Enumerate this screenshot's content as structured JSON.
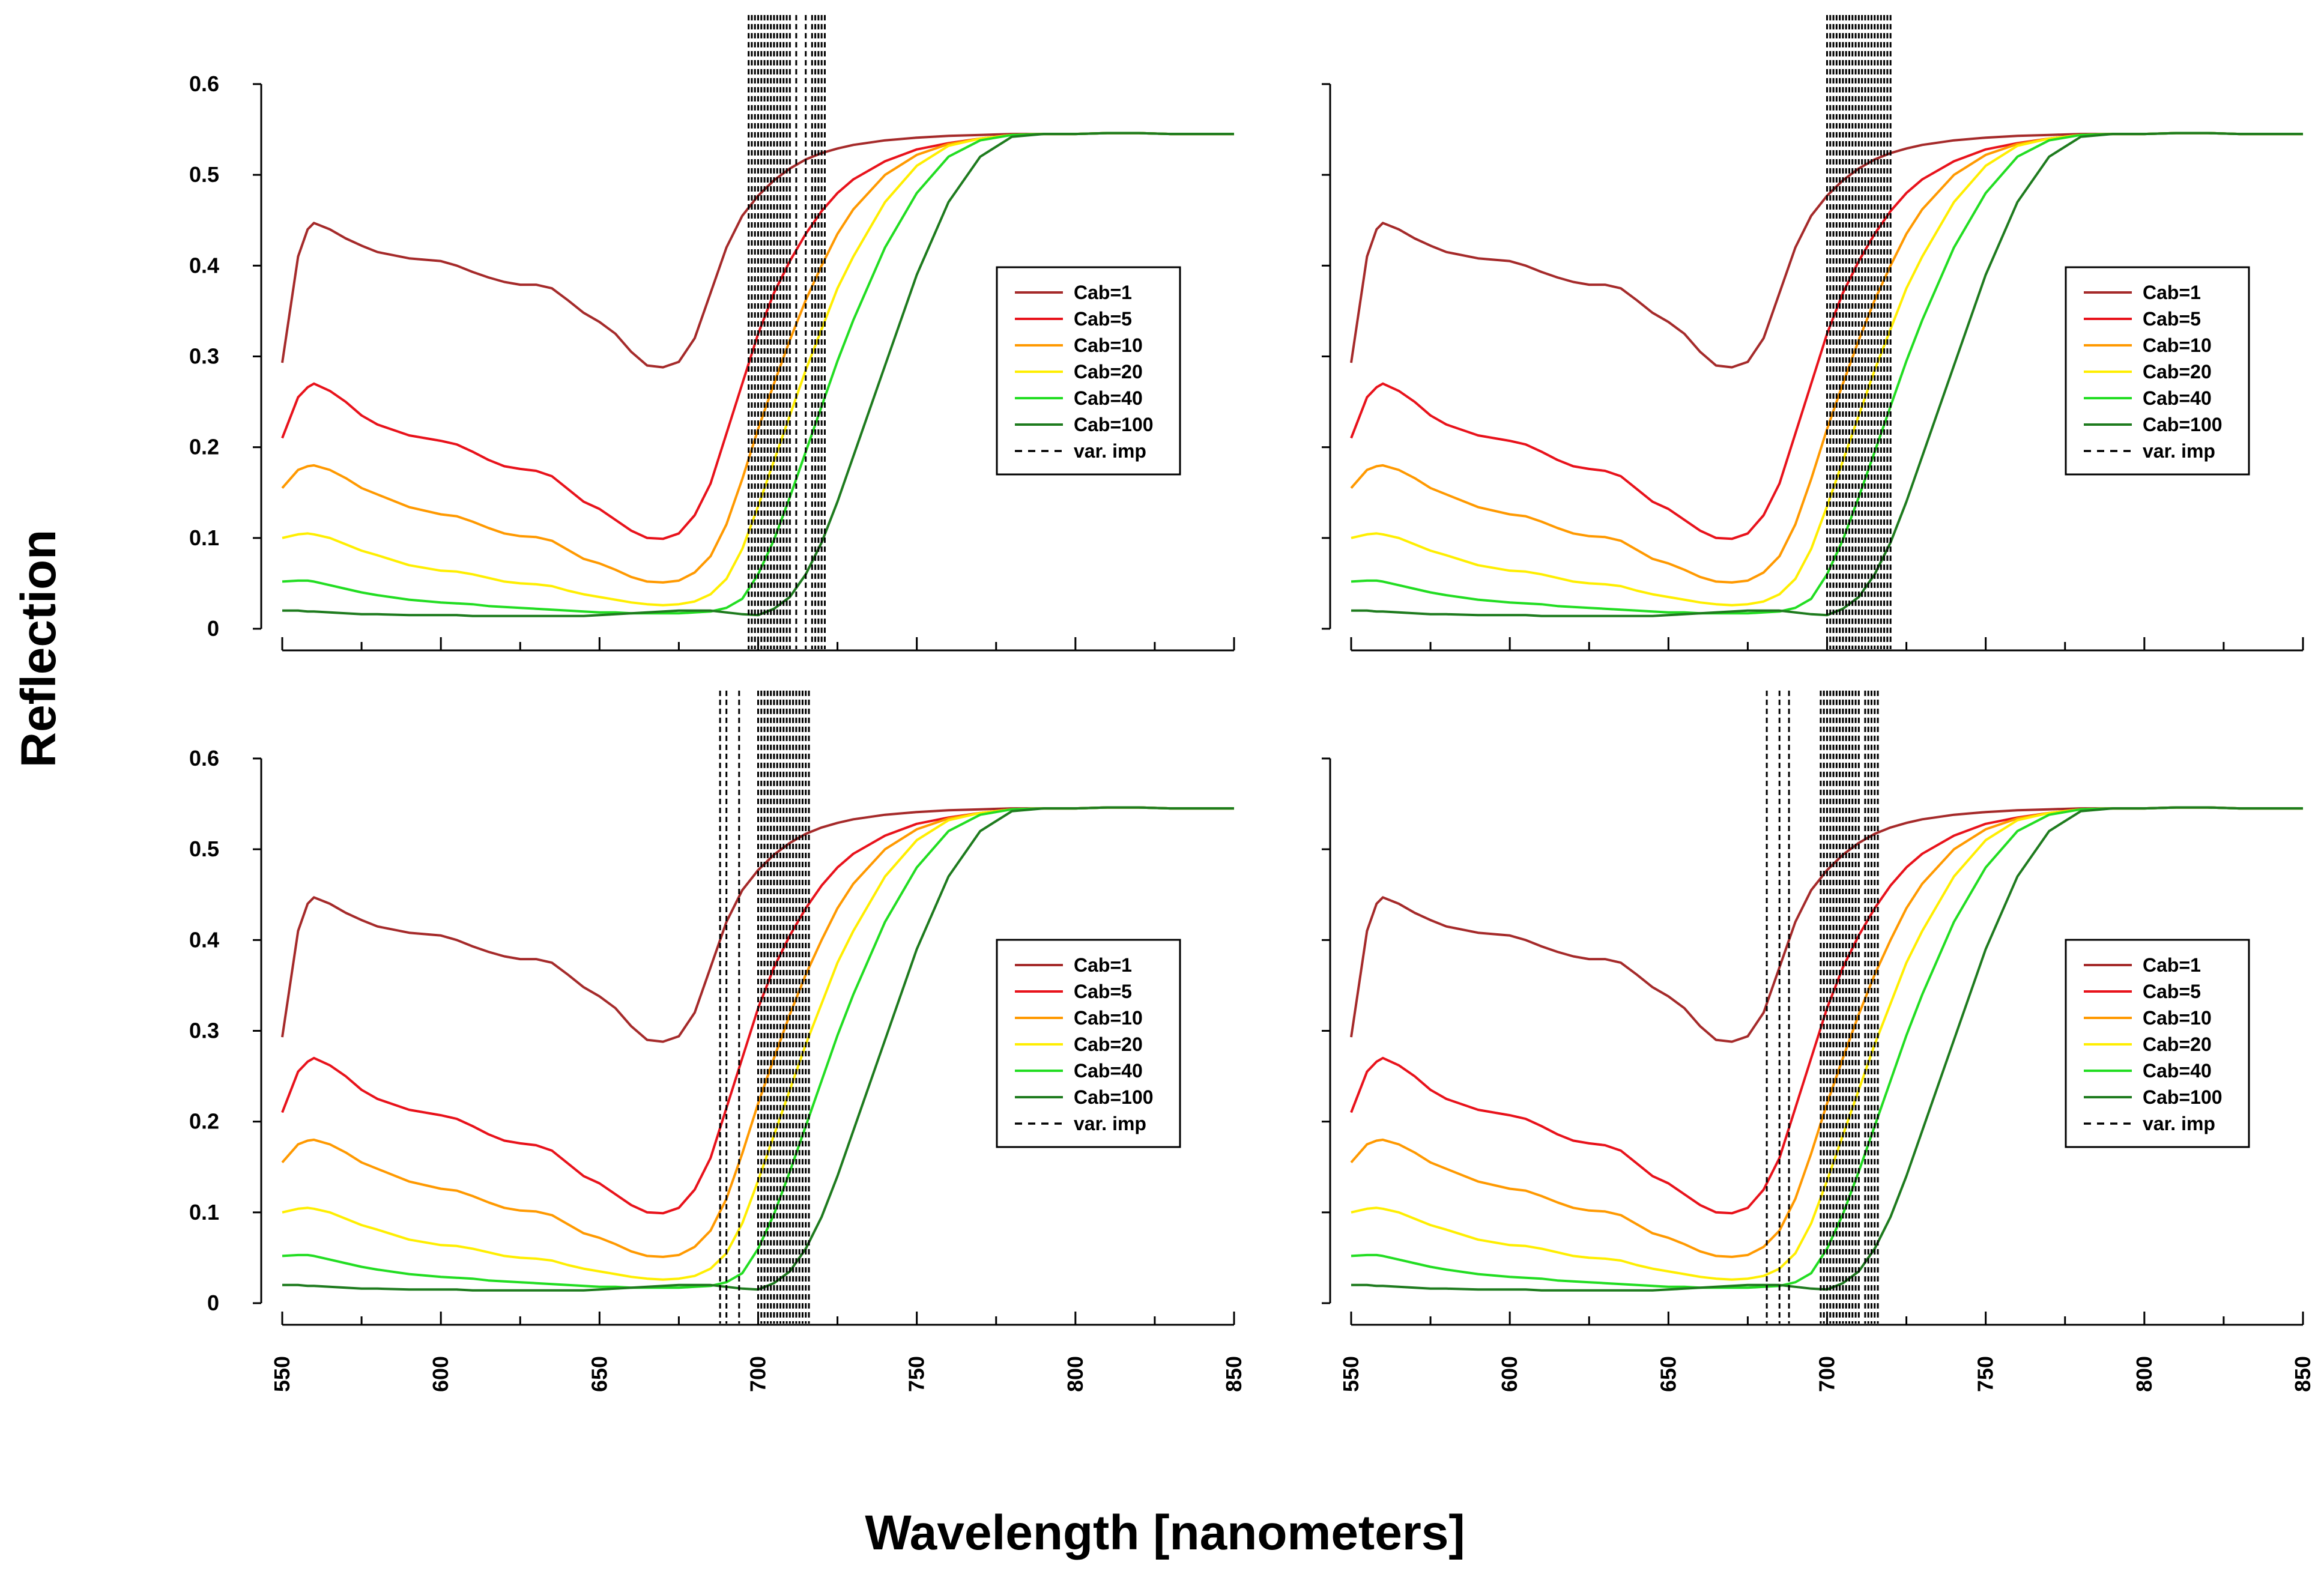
{
  "figure": {
    "xlabel": "Wavelength [nanometers]",
    "ylabel": "Reflection"
  },
  "chart_data": [
    {
      "type": "line",
      "panel": "top-left",
      "xlim": [
        550,
        850
      ],
      "ylim": [
        0,
        0.6
      ],
      "xticks": [
        550,
        600,
        650,
        700,
        750,
        800,
        850
      ],
      "yticks": [
        0,
        0.1,
        0.2,
        0.3,
        0.4,
        0.5,
        0.6
      ],
      "ytick_labels": [
        "0",
        "0.1",
        "0.2",
        "0.3",
        "0.4",
        "0.5",
        "0.6"
      ],
      "show_x_tick_labels": false,
      "legend_position": "center-right",
      "important_variables": [
        697,
        698,
        699,
        700,
        701,
        702,
        703,
        704,
        705,
        706,
        707,
        708,
        709,
        710,
        712,
        715,
        717,
        718,
        719,
        720,
        721
      ],
      "important_variables_label": "var. imp"
    },
    {
      "type": "line",
      "panel": "top-right",
      "xlim": [
        550,
        850
      ],
      "ylim": [
        0,
        0.6
      ],
      "xticks": [
        550,
        600,
        650,
        700,
        750,
        800,
        850
      ],
      "yticks": [
        0,
        0.1,
        0.2,
        0.3,
        0.4,
        0.5,
        0.6
      ],
      "show_x_tick_labels": false,
      "show_y_tick_labels": false,
      "legend_position": "center-right",
      "important_variables": [
        700,
        701,
        702,
        703,
        704,
        705,
        706,
        707,
        708,
        709,
        710,
        711,
        712,
        713,
        714,
        715,
        716,
        717,
        718,
        719,
        720
      ],
      "important_variables_label": "var. imp"
    },
    {
      "type": "line",
      "panel": "bottom-left",
      "xlim": [
        550,
        850
      ],
      "ylim": [
        0,
        0.6
      ],
      "xticks": [
        550,
        600,
        650,
        700,
        750,
        800,
        850
      ],
      "xtick_labels": [
        "550",
        "600",
        "650",
        "700",
        "750",
        "800",
        "850"
      ],
      "yticks": [
        0,
        0.1,
        0.2,
        0.3,
        0.4,
        0.5,
        0.6
      ],
      "ytick_labels": [
        "0",
        "0.1",
        "0.2",
        "0.3",
        "0.4",
        "0.5",
        "0.6"
      ],
      "legend_position": "center-right",
      "important_variables": [
        688,
        690,
        694,
        700,
        701,
        702,
        703,
        704,
        705,
        706,
        707,
        708,
        709,
        710,
        711,
        712,
        713,
        714,
        715,
        716
      ],
      "important_variables_label": "var. imp"
    },
    {
      "type": "line",
      "panel": "bottom-right",
      "xlim": [
        550,
        850
      ],
      "ylim": [
        0,
        0.6
      ],
      "xticks": [
        550,
        600,
        650,
        700,
        750,
        800,
        850
      ],
      "xtick_labels": [
        "550",
        "600",
        "650",
        "700",
        "750",
        "800",
        "850"
      ],
      "yticks": [
        0,
        0.1,
        0.2,
        0.3,
        0.4,
        0.5,
        0.6
      ],
      "show_y_tick_labels": false,
      "legend_position": "center-right",
      "important_variables": [
        681,
        685,
        688,
        698,
        699,
        700,
        701,
        702,
        703,
        704,
        705,
        706,
        707,
        708,
        709,
        710,
        712,
        713,
        714,
        715,
        716
      ],
      "important_variables_label": "var. imp"
    }
  ],
  "series": [
    {
      "name": "Cab=1",
      "color": "#a52a2a",
      "x": [
        550,
        555,
        558,
        560,
        565,
        570,
        575,
        580,
        590,
        600,
        605,
        610,
        615,
        620,
        625,
        630,
        635,
        640,
        645,
        650,
        655,
        660,
        665,
        670,
        675,
        680,
        685,
        690,
        695,
        700,
        705,
        710,
        715,
        720,
        725,
        730,
        740,
        750,
        760,
        770,
        780,
        790,
        800,
        810,
        820,
        830,
        840,
        850
      ],
      "y": [
        0.293,
        0.41,
        0.44,
        0.447,
        0.44,
        0.43,
        0.422,
        0.415,
        0.408,
        0.405,
        0.4,
        0.393,
        0.387,
        0.382,
        0.379,
        0.379,
        0.375,
        0.362,
        0.348,
        0.338,
        0.325,
        0.305,
        0.29,
        0.288,
        0.294,
        0.32,
        0.37,
        0.42,
        0.455,
        0.477,
        0.494,
        0.507,
        0.517,
        0.524,
        0.529,
        0.533,
        0.538,
        0.541,
        0.543,
        0.544,
        0.545,
        0.545,
        0.545,
        0.546,
        0.546,
        0.545,
        0.545,
        0.545
      ]
    },
    {
      "name": "Cab=5",
      "color": "#e8121b",
      "x": [
        550,
        555,
        558,
        560,
        565,
        570,
        575,
        580,
        590,
        600,
        605,
        610,
        615,
        620,
        625,
        630,
        635,
        640,
        645,
        650,
        655,
        660,
        665,
        670,
        675,
        680,
        685,
        690,
        695,
        700,
        705,
        710,
        715,
        720,
        725,
        730,
        740,
        750,
        760,
        770,
        780,
        790,
        800,
        810,
        820,
        830,
        840,
        850
      ],
      "y": [
        0.21,
        0.255,
        0.266,
        0.27,
        0.262,
        0.25,
        0.235,
        0.225,
        0.213,
        0.207,
        0.203,
        0.195,
        0.186,
        0.179,
        0.176,
        0.174,
        0.168,
        0.154,
        0.14,
        0.132,
        0.12,
        0.108,
        0.1,
        0.099,
        0.105,
        0.125,
        0.16,
        0.215,
        0.27,
        0.325,
        0.37,
        0.405,
        0.435,
        0.46,
        0.48,
        0.495,
        0.515,
        0.528,
        0.535,
        0.54,
        0.544,
        0.545,
        0.545,
        0.546,
        0.546,
        0.545,
        0.545,
        0.545
      ]
    },
    {
      "name": "Cab=10",
      "color": "#ff9900",
      "x": [
        550,
        555,
        558,
        560,
        565,
        570,
        575,
        580,
        590,
        600,
        605,
        610,
        615,
        620,
        625,
        630,
        635,
        640,
        645,
        650,
        655,
        660,
        665,
        670,
        675,
        680,
        685,
        690,
        695,
        700,
        705,
        710,
        715,
        720,
        725,
        730,
        740,
        750,
        760,
        770,
        780,
        790,
        800,
        810,
        820,
        830,
        840,
        850
      ],
      "y": [
        0.155,
        0.175,
        0.179,
        0.18,
        0.175,
        0.166,
        0.155,
        0.148,
        0.134,
        0.126,
        0.124,
        0.118,
        0.111,
        0.105,
        0.102,
        0.101,
        0.097,
        0.087,
        0.077,
        0.072,
        0.065,
        0.057,
        0.052,
        0.051,
        0.053,
        0.062,
        0.08,
        0.115,
        0.165,
        0.22,
        0.27,
        0.318,
        0.362,
        0.4,
        0.435,
        0.462,
        0.5,
        0.522,
        0.534,
        0.54,
        0.544,
        0.545,
        0.545,
        0.546,
        0.546,
        0.545,
        0.545,
        0.545
      ]
    },
    {
      "name": "Cab=20",
      "color": "#ffee00",
      "x": [
        550,
        555,
        558,
        560,
        565,
        570,
        575,
        580,
        590,
        600,
        605,
        610,
        615,
        620,
        625,
        630,
        635,
        640,
        645,
        650,
        655,
        660,
        665,
        670,
        675,
        680,
        685,
        690,
        695,
        700,
        705,
        710,
        715,
        720,
        725,
        730,
        740,
        750,
        760,
        770,
        780,
        790,
        800,
        810,
        820,
        830,
        840,
        850
      ],
      "y": [
        0.1,
        0.104,
        0.105,
        0.104,
        0.1,
        0.093,
        0.086,
        0.081,
        0.07,
        0.064,
        0.063,
        0.06,
        0.056,
        0.052,
        0.05,
        0.049,
        0.047,
        0.042,
        0.038,
        0.035,
        0.032,
        0.029,
        0.027,
        0.026,
        0.027,
        0.03,
        0.038,
        0.055,
        0.088,
        0.135,
        0.185,
        0.235,
        0.285,
        0.33,
        0.375,
        0.41,
        0.47,
        0.51,
        0.532,
        0.54,
        0.544,
        0.545,
        0.545,
        0.546,
        0.546,
        0.545,
        0.545,
        0.545
      ]
    },
    {
      "name": "Cab=40",
      "color": "#22dd22",
      "x": [
        550,
        555,
        558,
        560,
        565,
        570,
        575,
        580,
        590,
        600,
        605,
        610,
        615,
        620,
        625,
        630,
        635,
        640,
        645,
        650,
        655,
        660,
        665,
        670,
        675,
        680,
        685,
        690,
        695,
        700,
        705,
        710,
        715,
        720,
        725,
        730,
        740,
        750,
        760,
        770,
        780,
        790,
        800,
        810,
        820,
        830,
        840,
        850
      ],
      "y": [
        0.052,
        0.053,
        0.053,
        0.052,
        0.048,
        0.044,
        0.04,
        0.037,
        0.032,
        0.029,
        0.028,
        0.027,
        0.025,
        0.024,
        0.023,
        0.022,
        0.021,
        0.02,
        0.019,
        0.018,
        0.018,
        0.017,
        0.017,
        0.017,
        0.017,
        0.018,
        0.019,
        0.023,
        0.033,
        0.06,
        0.098,
        0.145,
        0.195,
        0.245,
        0.295,
        0.34,
        0.42,
        0.48,
        0.52,
        0.538,
        0.544,
        0.545,
        0.545,
        0.546,
        0.546,
        0.545,
        0.545,
        0.545
      ]
    },
    {
      "name": "Cab=100",
      "color": "#1e7b1e",
      "x": [
        550,
        555,
        558,
        560,
        565,
        570,
        575,
        580,
        590,
        600,
        605,
        610,
        615,
        620,
        625,
        630,
        635,
        640,
        645,
        650,
        655,
        660,
        665,
        670,
        675,
        680,
        685,
        690,
        695,
        700,
        705,
        710,
        715,
        720,
        725,
        730,
        740,
        750,
        760,
        770,
        780,
        790,
        800,
        810,
        820,
        830,
        840,
        850
      ],
      "y": [
        0.02,
        0.02,
        0.019,
        0.019,
        0.018,
        0.017,
        0.016,
        0.016,
        0.015,
        0.015,
        0.015,
        0.014,
        0.014,
        0.014,
        0.014,
        0.014,
        0.014,
        0.014,
        0.014,
        0.015,
        0.016,
        0.017,
        0.018,
        0.019,
        0.02,
        0.02,
        0.02,
        0.018,
        0.016,
        0.015,
        0.022,
        0.035,
        0.06,
        0.095,
        0.14,
        0.19,
        0.29,
        0.39,
        0.47,
        0.52,
        0.542,
        0.545,
        0.545,
        0.546,
        0.546,
        0.545,
        0.545,
        0.545
      ]
    }
  ]
}
